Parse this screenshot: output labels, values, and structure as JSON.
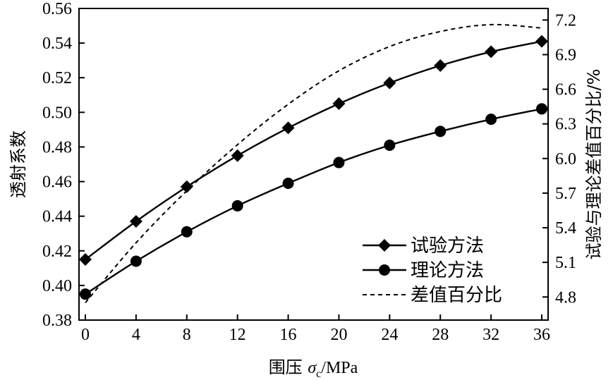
{
  "chart_data": {
    "type": "line",
    "x": [
      0,
      4,
      8,
      12,
      16,
      20,
      24,
      28,
      32,
      36
    ],
    "xlim": [
      -0.5,
      36.5
    ],
    "x_ticks": [
      "0",
      "4",
      "8",
      "12",
      "16",
      "20",
      "24",
      "28",
      "32",
      "36"
    ],
    "xlabel_prefix": "围压 ",
    "xlabel_symbol": "σ",
    "xlabel_sub": "c",
    "xlabel_suffix": "/MPa",
    "ylabel_left": "透射系数",
    "ylim_left": [
      0.38,
      0.56
    ],
    "y_ticks_left": [
      "0.38",
      "0.40",
      "0.42",
      "0.44",
      "0.46",
      "0.48",
      "0.50",
      "0.52",
      "0.54",
      "0.56"
    ],
    "ylabel_right": "试验与理论差值百分比/%",
    "ylim_right": [
      4.6,
      7.3
    ],
    "y_ticks_right": [
      "4.8",
      "5.1",
      "5.4",
      "5.7",
      "6.0",
      "6.3",
      "6.6",
      "6.9",
      "7.2"
    ],
    "series": [
      {
        "name": "试验方法",
        "axis": "left",
        "marker": "diamond",
        "style": "solid",
        "values": [
          0.415,
          0.437,
          0.457,
          0.475,
          0.491,
          0.505,
          0.517,
          0.527,
          0.535,
          0.541
        ]
      },
      {
        "name": "理论方法",
        "axis": "left",
        "marker": "circle",
        "style": "solid",
        "values": [
          0.395,
          0.414,
          0.431,
          0.446,
          0.459,
          0.471,
          0.481,
          0.489,
          0.496,
          0.502
        ]
      },
      {
        "name": "差值百分比",
        "axis": "right",
        "marker": "none",
        "style": "dashed",
        "values": [
          4.75,
          5.27,
          5.72,
          6.12,
          6.47,
          6.76,
          6.97,
          7.1,
          7.16,
          7.13
        ]
      }
    ],
    "legend_position": "bottom-right",
    "grid": false
  }
}
